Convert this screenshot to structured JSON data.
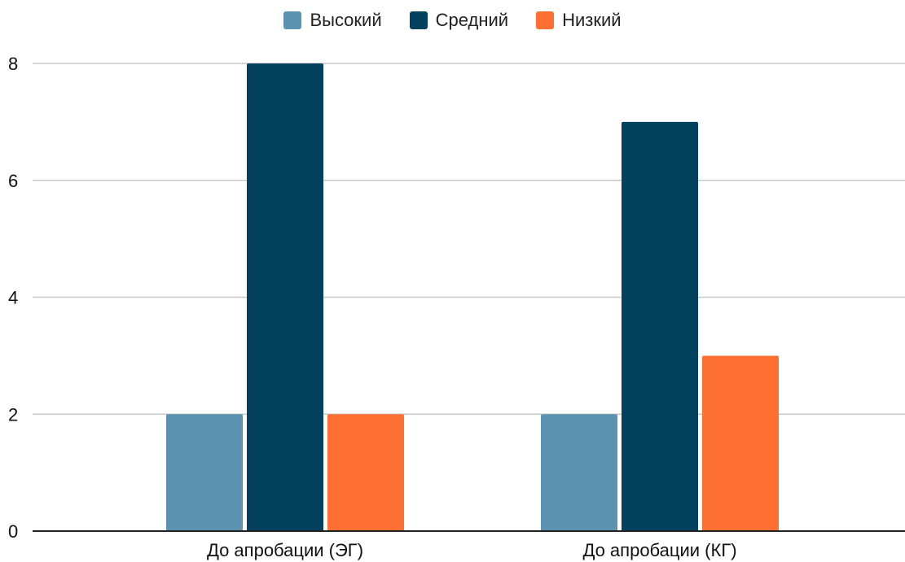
{
  "chart_data": {
    "type": "bar",
    "categories": [
      "До апробации (ЭГ)",
      "До апробации (КГ)"
    ],
    "series": [
      {
        "name": "Высокий",
        "color": "#5b93b0",
        "values": [
          2,
          2
        ]
      },
      {
        "name": "Средний",
        "color": "#03415e",
        "values": [
          8,
          7
        ]
      },
      {
        "name": "Низкий",
        "color": "#fe7032",
        "values": [
          2,
          3
        ]
      }
    ],
    "yticks": [
      "0",
      "2",
      "4",
      "6",
      "8"
    ],
    "ylim": [
      0,
      8
    ],
    "grid": true,
    "legend_position": "top-center"
  }
}
